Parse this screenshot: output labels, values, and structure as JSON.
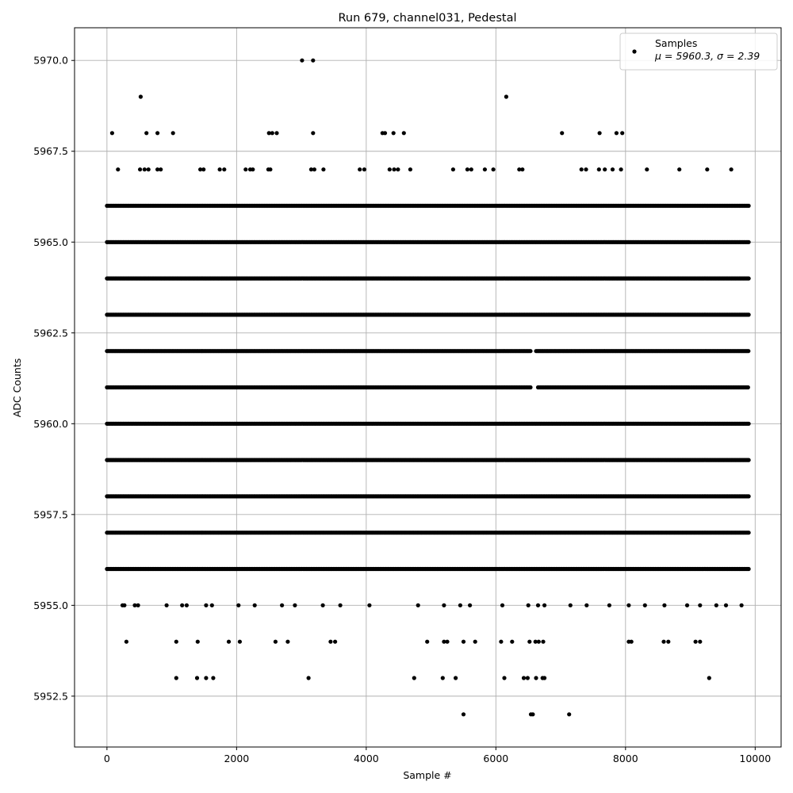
{
  "chart_data": {
    "type": "scatter",
    "title": "Run 679, channel031, Pedestal",
    "xlabel": "Sample #",
    "ylabel": "ADC Counts",
    "xlim": [
      -500,
      10400
    ],
    "ylim": [
      5951.1,
      5970.9
    ],
    "xticks": [
      0,
      2000,
      4000,
      6000,
      8000,
      10000
    ],
    "xtick_labels": [
      "0",
      "2000",
      "4000",
      "6000",
      "8000",
      "10000"
    ],
    "yticks": [
      5952.5,
      5955.0,
      5957.5,
      5960.0,
      5962.5,
      5965.0,
      5967.5,
      5970.0
    ],
    "ytick_labels": [
      "5952.5",
      "5955.0",
      "5957.5",
      "5960.0",
      "5962.5",
      "5965.0",
      "5967.5",
      "5970.0"
    ],
    "grid": true,
    "legend_position": "top-right",
    "marker_color": "#000000",
    "grid_color": "#b0b0b0",
    "series": [
      {
        "name": "Samples",
        "stats_label": "μ = 5960.3, σ = 2.39",
        "bands": [
          {
            "y": 5960,
            "x": [
              [
                0,
                9900
              ]
            ]
          },
          {
            "y": 5961,
            "x": [
              [
                0,
                6550
              ],
              [
                6650,
                9900
              ]
            ]
          },
          {
            "y": 5962,
            "x": [
              [
                0,
                6550
              ],
              [
                6620,
                9900
              ]
            ]
          },
          {
            "y": 5959,
            "x": [
              [
                0,
                9900
              ]
            ]
          },
          {
            "y": 5963,
            "x": [
              [
                0,
                9900
              ]
            ]
          },
          {
            "y": 5958,
            "x": [
              [
                0,
                9900
              ]
            ]
          },
          {
            "y": 5964,
            "x": [
              [
                0,
                9900
              ]
            ]
          },
          {
            "y": 5957,
            "x": [
              [
                0,
                9900
              ]
            ]
          },
          {
            "y": 5965,
            "x": [
              [
                0,
                9900
              ]
            ]
          },
          {
            "y": 5956,
            "x": [
              [
                0,
                9900
              ]
            ]
          },
          {
            "y": 5966,
            "x": [
              [
                0,
                9900
              ]
            ]
          }
        ],
        "points": [
          [
            3010,
            5970
          ],
          [
            3180,
            5970
          ],
          [
            520,
            5969
          ],
          [
            6160,
            5969
          ],
          [
            80,
            5968
          ],
          [
            610,
            5968
          ],
          [
            780,
            5968
          ],
          [
            1020,
            5968
          ],
          [
            2500,
            5968
          ],
          [
            2550,
            5968
          ],
          [
            2620,
            5968
          ],
          [
            3180,
            5968
          ],
          [
            4250,
            5968
          ],
          [
            4290,
            5968
          ],
          [
            4420,
            5968
          ],
          [
            4580,
            5968
          ],
          [
            7020,
            5968
          ],
          [
            7600,
            5968
          ],
          [
            7860,
            5968
          ],
          [
            7950,
            5968
          ],
          [
            170,
            5967
          ],
          [
            510,
            5967
          ],
          [
            580,
            5967
          ],
          [
            640,
            5967
          ],
          [
            780,
            5967
          ],
          [
            830,
            5967
          ],
          [
            1440,
            5967
          ],
          [
            1490,
            5967
          ],
          [
            1740,
            5967
          ],
          [
            1810,
            5967
          ],
          [
            2140,
            5967
          ],
          [
            2210,
            5967
          ],
          [
            2250,
            5967
          ],
          [
            2490,
            5967
          ],
          [
            2520,
            5967
          ],
          [
            3150,
            5967
          ],
          [
            3200,
            5967
          ],
          [
            3340,
            5967
          ],
          [
            3900,
            5967
          ],
          [
            3970,
            5967
          ],
          [
            4360,
            5967
          ],
          [
            4430,
            5967
          ],
          [
            4490,
            5967
          ],
          [
            4680,
            5967
          ],
          [
            5340,
            5967
          ],
          [
            5560,
            5967
          ],
          [
            5620,
            5967
          ],
          [
            5830,
            5967
          ],
          [
            5960,
            5967
          ],
          [
            6360,
            5967
          ],
          [
            6410,
            5967
          ],
          [
            7320,
            5967
          ],
          [
            7390,
            5967
          ],
          [
            7590,
            5967
          ],
          [
            7680,
            5967
          ],
          [
            7800,
            5967
          ],
          [
            7930,
            5967
          ],
          [
            8330,
            5967
          ],
          [
            8830,
            5967
          ],
          [
            9260,
            5967
          ],
          [
            9630,
            5967
          ],
          [
            240,
            5955
          ],
          [
            270,
            5955
          ],
          [
            430,
            5955
          ],
          [
            480,
            5955
          ],
          [
            920,
            5955
          ],
          [
            1160,
            5955
          ],
          [
            1230,
            5955
          ],
          [
            1530,
            5955
          ],
          [
            1620,
            5955
          ],
          [
            2030,
            5955
          ],
          [
            2280,
            5955
          ],
          [
            2700,
            5955
          ],
          [
            2900,
            5955
          ],
          [
            3330,
            5955
          ],
          [
            3600,
            5955
          ],
          [
            4050,
            5955
          ],
          [
            4800,
            5955
          ],
          [
            5200,
            5955
          ],
          [
            5450,
            5955
          ],
          [
            5600,
            5955
          ],
          [
            6100,
            5955
          ],
          [
            6500,
            5955
          ],
          [
            6650,
            5955
          ],
          [
            6750,
            5955
          ],
          [
            7150,
            5955
          ],
          [
            7400,
            5955
          ],
          [
            7750,
            5955
          ],
          [
            8050,
            5955
          ],
          [
            8300,
            5955
          ],
          [
            8600,
            5955
          ],
          [
            8950,
            5955
          ],
          [
            9150,
            5955
          ],
          [
            9400,
            5955
          ],
          [
            9550,
            5955
          ],
          [
            9790,
            5955
          ],
          [
            300,
            5954
          ],
          [
            1070,
            5954
          ],
          [
            1400,
            5954
          ],
          [
            1880,
            5954
          ],
          [
            2050,
            5954
          ],
          [
            2600,
            5954
          ],
          [
            2790,
            5954
          ],
          [
            3450,
            5954
          ],
          [
            3520,
            5954
          ],
          [
            4940,
            5954
          ],
          [
            5200,
            5954
          ],
          [
            5250,
            5954
          ],
          [
            5500,
            5954
          ],
          [
            5680,
            5954
          ],
          [
            6080,
            5954
          ],
          [
            6250,
            5954
          ],
          [
            6520,
            5954
          ],
          [
            6610,
            5954
          ],
          [
            6660,
            5954
          ],
          [
            6730,
            5954
          ],
          [
            8050,
            5954
          ],
          [
            8090,
            5954
          ],
          [
            8590,
            5954
          ],
          [
            8660,
            5954
          ],
          [
            9080,
            5954
          ],
          [
            9150,
            5954
          ],
          [
            1070,
            5953
          ],
          [
            1390,
            5953
          ],
          [
            1530,
            5953
          ],
          [
            1640,
            5953
          ],
          [
            3110,
            5953
          ],
          [
            4740,
            5953
          ],
          [
            5180,
            5953
          ],
          [
            5380,
            5953
          ],
          [
            6130,
            5953
          ],
          [
            6430,
            5953
          ],
          [
            6490,
            5953
          ],
          [
            6620,
            5953
          ],
          [
            6720,
            5953
          ],
          [
            6750,
            5953
          ],
          [
            9290,
            5953
          ],
          [
            5500,
            5952
          ],
          [
            6540,
            5952
          ],
          [
            6570,
            5952
          ],
          [
            7130,
            5952
          ]
        ]
      }
    ]
  }
}
